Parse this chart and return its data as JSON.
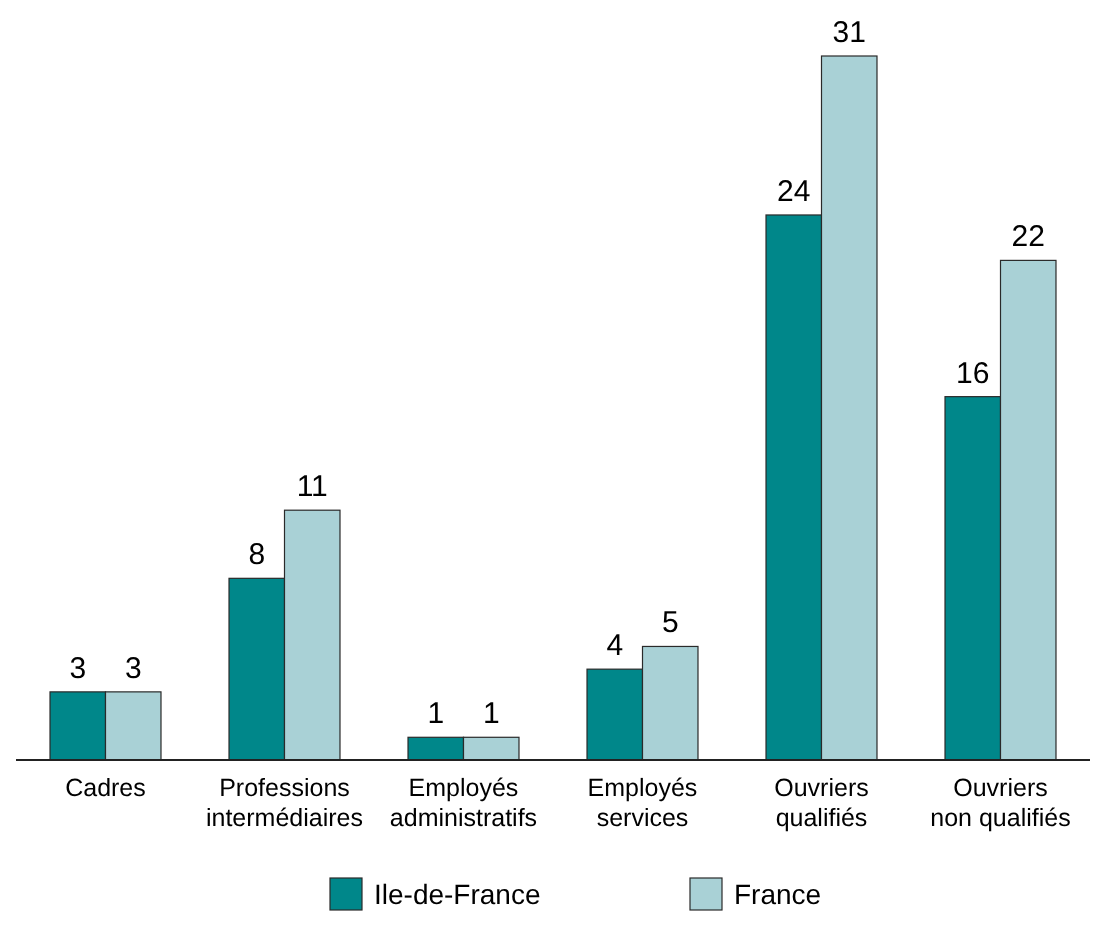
{
  "chart_data": {
    "type": "bar",
    "categories": [
      "Cadres",
      "Professions intermédiaires",
      "Employés administratifs",
      "Employés services",
      "Ouvriers qualifiés",
      "Ouvriers non qualifiés"
    ],
    "series": [
      {
        "name": "Ile-de-France",
        "color": "#00878a",
        "values": [
          3,
          8,
          1,
          4,
          24,
          16
        ]
      },
      {
        "name": "France",
        "color": "#a9d1d6",
        "values": [
          3,
          11,
          1,
          5,
          31,
          22
        ]
      }
    ],
    "data_labels": true,
    "legend": "bottom"
  }
}
